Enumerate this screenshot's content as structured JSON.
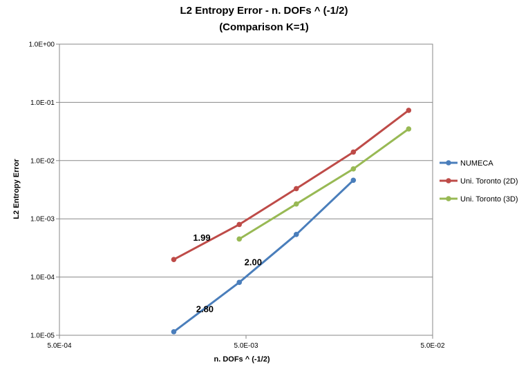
{
  "chart_data": {
    "type": "line",
    "title": "L2 Entropy Error - n. DOFs ^ (-1/2)",
    "subtitle": "(Comparison  K=1)",
    "xlabel": "n. DOFs ^ (-1/2)",
    "ylabel": "L2 Entropy Error",
    "x_scale": "log",
    "y_scale": "log",
    "xlim": [
      0.0005,
      0.05
    ],
    "ylim": [
      1e-05,
      1.0
    ],
    "x_ticks": [
      "5.0E-04",
      "5.0E-03",
      "5.0E-02"
    ],
    "y_ticks": [
      "1.0E+00",
      "1.0E-01",
      "1.0E-02",
      "1.0E-03",
      "1.0E-04",
      "1.0E-05"
    ],
    "grid": "y-major",
    "legend_position": "right",
    "series": [
      {
        "name": "NUMECA",
        "color": "#4a7ebb",
        "x": [
          0.00205,
          0.0046,
          0.0093,
          0.0188
        ],
        "y": [
          1.15e-05,
          8.1e-05,
          0.00054,
          0.0046
        ]
      },
      {
        "name": "Uni. Toronto (2D)",
        "color": "#be4b48",
        "x": [
          0.00205,
          0.0046,
          0.0093,
          0.0188,
          0.0372
        ],
        "y": [
          0.0002,
          0.0008,
          0.0033,
          0.014,
          0.073
        ]
      },
      {
        "name": "Uni. Toronto (3D)",
        "color": "#98b954",
        "x": [
          0.0046,
          0.0093,
          0.0188,
          0.0372
        ],
        "y": [
          0.00045,
          0.0018,
          0.0072,
          0.035
        ]
      }
    ],
    "annotations": [
      {
        "text": "1.99",
        "x": 0.0026,
        "y": 0.00042
      },
      {
        "text": "2.00",
        "x": 0.0049,
        "y": 0.00016
      },
      {
        "text": "2.80",
        "x": 0.0027,
        "y": 2.5e-05
      }
    ]
  }
}
